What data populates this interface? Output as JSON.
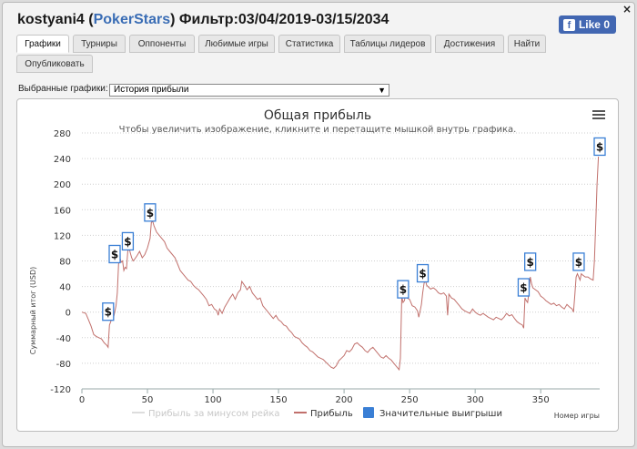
{
  "window": {
    "player": "kostyani4",
    "site": "PokerStars",
    "filter": "Фильтр:03/04/2019-03/15/2034",
    "close_glyph": "×",
    "like_label": "Like 0"
  },
  "tabs": [
    {
      "label": "Графики",
      "active": true
    },
    {
      "label": "Турниры"
    },
    {
      "label": "Оппоненты"
    },
    {
      "label": "Любимые игры"
    },
    {
      "label": "Статистика"
    },
    {
      "label": "Таблицы лидеров"
    },
    {
      "label": "Достижения"
    },
    {
      "label": "Найти"
    },
    {
      "label": "Опубликовать"
    }
  ],
  "chart_select": {
    "label": "Выбранные графики:",
    "value": "История прибыли"
  },
  "chart_data": {
    "type": "line",
    "title": "Общая прибыль",
    "subtitle": "Чтобы увеличить изображение, кликните и перетащите мышкой внутрь графика.",
    "xlabel": "Номер игры",
    "ylabel": "Суммарный итог (USD)",
    "xlim": [
      0,
      395
    ],
    "ylim": [
      -120,
      280
    ],
    "xticks": [
      0,
      50,
      100,
      150,
      200,
      250,
      300,
      350
    ],
    "yticks": [
      -120,
      -80,
      -40,
      0,
      40,
      80,
      120,
      160,
      200,
      240,
      280
    ],
    "grid": "horizontal dotted",
    "legend": "bottom",
    "menu_icon": "hamburger-menu-icon",
    "series": [
      {
        "name": "Прибыль за минусом рейка",
        "color": "#dddddd",
        "visible": false,
        "values": []
      },
      {
        "name": "Прибыль",
        "color": "#c1706c",
        "points": [
          [
            0,
            0
          ],
          [
            3,
            -2
          ],
          [
            5,
            -12
          ],
          [
            7,
            -22
          ],
          [
            9,
            -35
          ],
          [
            11,
            -38
          ],
          [
            13,
            -40
          ],
          [
            15,
            -42
          ],
          [
            17,
            -48
          ],
          [
            19,
            -52
          ],
          [
            20,
            -55
          ],
          [
            21,
            -20
          ],
          [
            22,
            -15
          ],
          [
            23,
            -5
          ],
          [
            24,
            -10
          ],
          [
            26,
            10
          ],
          [
            27,
            30
          ],
          [
            28,
            75
          ],
          [
            29,
            85
          ],
          [
            30,
            78
          ],
          [
            31,
            80
          ],
          [
            32,
            65
          ],
          [
            33,
            70
          ],
          [
            34,
            68
          ],
          [
            35,
            95
          ],
          [
            36,
            100
          ],
          [
            37,
            92
          ],
          [
            38,
            85
          ],
          [
            39,
            80
          ],
          [
            40,
            82
          ],
          [
            42,
            88
          ],
          [
            44,
            95
          ],
          [
            46,
            85
          ],
          [
            48,
            90
          ],
          [
            50,
            100
          ],
          [
            52,
            115
          ],
          [
            53,
            140
          ],
          [
            54,
            142
          ],
          [
            55,
            135
          ],
          [
            57,
            125
          ],
          [
            59,
            120
          ],
          [
            61,
            115
          ],
          [
            63,
            110
          ],
          [
            65,
            100
          ],
          [
            67,
            95
          ],
          [
            69,
            90
          ],
          [
            71,
            85
          ],
          [
            73,
            75
          ],
          [
            75,
            65
          ],
          [
            77,
            60
          ],
          [
            79,
            55
          ],
          [
            81,
            50
          ],
          [
            83,
            48
          ],
          [
            85,
            42
          ],
          [
            87,
            38
          ],
          [
            89,
            35
          ],
          [
            91,
            30
          ],
          [
            93,
            25
          ],
          [
            95,
            20
          ],
          [
            97,
            10
          ],
          [
            99,
            12
          ],
          [
            101,
            5
          ],
          [
            103,
            2
          ],
          [
            104,
            -5
          ],
          [
            105,
            5
          ],
          [
            107,
            -2
          ],
          [
            109,
            8
          ],
          [
            111,
            15
          ],
          [
            113,
            22
          ],
          [
            115,
            28
          ],
          [
            117,
            20
          ],
          [
            119,
            30
          ],
          [
            121,
            35
          ],
          [
            122,
            48
          ],
          [
            124,
            42
          ],
          [
            126,
            35
          ],
          [
            128,
            40
          ],
          [
            130,
            30
          ],
          [
            132,
            25
          ],
          [
            134,
            20
          ],
          [
            136,
            22
          ],
          [
            138,
            10
          ],
          [
            140,
            5
          ],
          [
            142,
            0
          ],
          [
            144,
            -5
          ],
          [
            146,
            -10
          ],
          [
            148,
            -5
          ],
          [
            150,
            -12
          ],
          [
            152,
            -15
          ],
          [
            154,
            -20
          ],
          [
            156,
            -22
          ],
          [
            158,
            -28
          ],
          [
            160,
            -32
          ],
          [
            162,
            -38
          ],
          [
            164,
            -40
          ],
          [
            166,
            -42
          ],
          [
            168,
            -48
          ],
          [
            170,
            -52
          ],
          [
            172,
            -55
          ],
          [
            174,
            -60
          ],
          [
            176,
            -62
          ],
          [
            178,
            -66
          ],
          [
            180,
            -70
          ],
          [
            182,
            -72
          ],
          [
            184,
            -74
          ],
          [
            186,
            -78
          ],
          [
            188,
            -82
          ],
          [
            190,
            -86
          ],
          [
            192,
            -88
          ],
          [
            194,
            -84
          ],
          [
            196,
            -76
          ],
          [
            198,
            -72
          ],
          [
            200,
            -68
          ],
          [
            202,
            -60
          ],
          [
            204,
            -62
          ],
          [
            206,
            -58
          ],
          [
            208,
            -50
          ],
          [
            210,
            -48
          ],
          [
            212,
            -52
          ],
          [
            214,
            -55
          ],
          [
            216,
            -60
          ],
          [
            218,
            -63
          ],
          [
            220,
            -58
          ],
          [
            222,
            -55
          ],
          [
            224,
            -60
          ],
          [
            226,
            -65
          ],
          [
            228,
            -70
          ],
          [
            230,
            -72
          ],
          [
            232,
            -68
          ],
          [
            234,
            -72
          ],
          [
            236,
            -75
          ],
          [
            238,
            -80
          ],
          [
            240,
            -85
          ],
          [
            242,
            -90
          ],
          [
            243,
            -72
          ],
          [
            244,
            25
          ],
          [
            245,
            15
          ],
          [
            246,
            18
          ],
          [
            247,
            28
          ],
          [
            248,
            22
          ],
          [
            250,
            20
          ],
          [
            252,
            10
          ],
          [
            254,
            8
          ],
          [
            256,
            2
          ],
          [
            257,
            -8
          ],
          [
            258,
            2
          ],
          [
            259,
            12
          ],
          [
            260,
            30
          ],
          [
            261,
            45
          ],
          [
            262,
            50
          ],
          [
            263,
            42
          ],
          [
            264,
            40
          ],
          [
            266,
            36
          ],
          [
            268,
            38
          ],
          [
            270,
            35
          ],
          [
            272,
            30
          ],
          [
            274,
            28
          ],
          [
            276,
            30
          ],
          [
            278,
            25
          ],
          [
            279,
            -5
          ],
          [
            280,
            28
          ],
          [
            282,
            22
          ],
          [
            284,
            20
          ],
          [
            286,
            15
          ],
          [
            288,
            10
          ],
          [
            290,
            5
          ],
          [
            292,
            2
          ],
          [
            294,
            0
          ],
          [
            296,
            -2
          ],
          [
            298,
            5
          ],
          [
            300,
            0
          ],
          [
            302,
            -3
          ],
          [
            304,
            -5
          ],
          [
            306,
            -2
          ],
          [
            308,
            -5
          ],
          [
            310,
            -8
          ],
          [
            312,
            -10
          ],
          [
            314,
            -12
          ],
          [
            316,
            -8
          ],
          [
            318,
            -10
          ],
          [
            320,
            -12
          ],
          [
            322,
            -8
          ],
          [
            324,
            -2
          ],
          [
            326,
            -6
          ],
          [
            328,
            -4
          ],
          [
            330,
            -10
          ],
          [
            332,
            -15
          ],
          [
            334,
            -18
          ],
          [
            336,
            -20
          ],
          [
            337,
            -25
          ],
          [
            338,
            22
          ],
          [
            339,
            18
          ],
          [
            340,
            15
          ],
          [
            341,
            30
          ],
          [
            342,
            55
          ],
          [
            343,
            45
          ],
          [
            344,
            38
          ],
          [
            346,
            35
          ],
          [
            348,
            32
          ],
          [
            350,
            25
          ],
          [
            352,
            22
          ],
          [
            354,
            18
          ],
          [
            356,
            15
          ],
          [
            358,
            12
          ],
          [
            360,
            14
          ],
          [
            362,
            10
          ],
          [
            364,
            12
          ],
          [
            366,
            8
          ],
          [
            368,
            5
          ],
          [
            370,
            12
          ],
          [
            372,
            8
          ],
          [
            374,
            5
          ],
          [
            375,
            0
          ],
          [
            376,
            25
          ],
          [
            377,
            55
          ],
          [
            378,
            60
          ],
          [
            380,
            50
          ],
          [
            381,
            60
          ],
          [
            382,
            58
          ],
          [
            384,
            55
          ],
          [
            386,
            55
          ],
          [
            388,
            52
          ],
          [
            390,
            50
          ],
          [
            391,
            80
          ],
          [
            392,
            140
          ],
          [
            393,
            200
          ],
          [
            394,
            243
          ]
        ]
      },
      {
        "name": "Значительные выигрыши",
        "color": "#3a7fd5",
        "marker_symbol": "$",
        "points": [
          [
            20,
            0
          ],
          [
            25,
            90
          ],
          [
            35,
            110
          ],
          [
            52,
            155
          ],
          [
            245,
            35
          ],
          [
            260,
            60
          ],
          [
            337,
            38
          ],
          [
            342,
            78
          ],
          [
            379,
            78
          ],
          [
            395,
            258
          ]
        ]
      }
    ]
  }
}
